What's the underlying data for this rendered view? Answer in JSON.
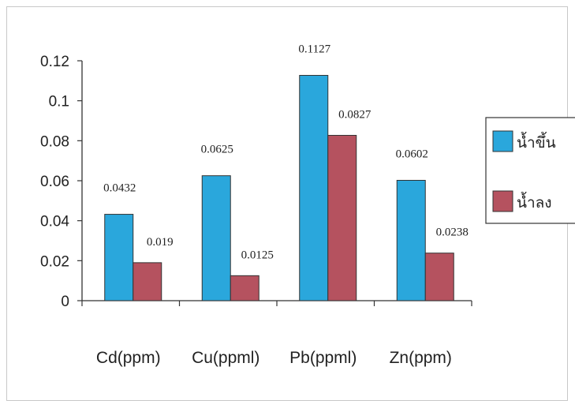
{
  "chart_data": {
    "type": "bar",
    "title": "",
    "xlabel": "",
    "ylabel": "",
    "ylim": [
      0,
      0.12
    ],
    "yticks": [
      0,
      0.02,
      0.04,
      0.06,
      0.08,
      0.1,
      0.12
    ],
    "ytick_labels": [
      "0",
      "0.02",
      "0.04",
      "0.06",
      "0.08",
      "0.1",
      "0.12"
    ],
    "grid": false,
    "legend_position": "right",
    "categories": [
      "Cd(ppm)",
      "Cu(ppml)",
      "Pb(ppml)",
      "Zn(ppm)"
    ],
    "series": [
      {
        "name": "น้ำขึ้น",
        "color": "#2aa7dc",
        "values": [
          0.0432,
          0.0625,
          0.1127,
          0.0602
        ],
        "value_labels": [
          "0.0432",
          "0.0625",
          "0.1127",
          "0.0602"
        ]
      },
      {
        "name": "น้ำลง",
        "color": "#b5525f",
        "values": [
          0.019,
          0.0125,
          0.0827,
          0.0238
        ],
        "value_labels": [
          "0.019",
          "0.0125",
          "0.0827",
          "0.0238"
        ]
      }
    ]
  }
}
